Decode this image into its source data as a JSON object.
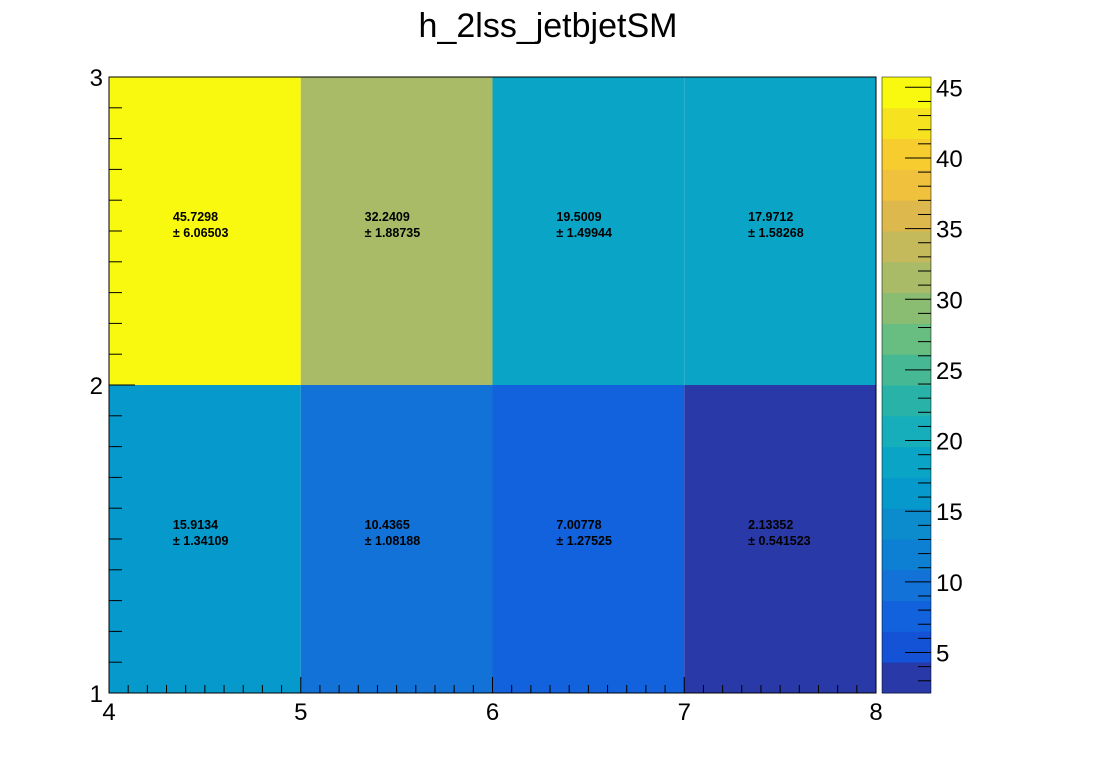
{
  "chart_data": {
    "type": "heatmap",
    "title": "h_2lss_jetbjetSM",
    "xlabel": "",
    "ylabel": "",
    "x_edges": [
      4,
      5,
      6,
      7,
      8
    ],
    "y_edges": [
      1,
      2,
      3
    ],
    "xlim": [
      4,
      8
    ],
    "ylim": [
      1,
      3
    ],
    "x_tick_labels": [
      "4",
      "5",
      "6",
      "7",
      "8"
    ],
    "y_tick_labels": [
      "1",
      "2",
      "3"
    ],
    "z_range": [
      2.13352,
      45.7298
    ],
    "colorbar_ticks": [
      "5",
      "10",
      "15",
      "20",
      "25",
      "30",
      "35",
      "40",
      "45"
    ],
    "palette": "parula",
    "grid": false,
    "cells": [
      {
        "x": 4,
        "y": 1,
        "value": 15.9134,
        "error": 1.34109,
        "value_text": "15.9134",
        "error_text": "± 1.34109"
      },
      {
        "x": 5,
        "y": 1,
        "value": 10.4365,
        "error": 1.08188,
        "value_text": "10.4365",
        "error_text": "± 1.08188"
      },
      {
        "x": 6,
        "y": 1,
        "value": 7.00778,
        "error": 1.27525,
        "value_text": "7.00778",
        "error_text": "± 1.27525"
      },
      {
        "x": 7,
        "y": 1,
        "value": 2.13352,
        "error": 0.541523,
        "value_text": "2.13352",
        "error_text": "± 0.541523"
      },
      {
        "x": 4,
        "y": 2,
        "value": 45.7298,
        "error": 6.06503,
        "value_text": "45.7298",
        "error_text": "± 6.06503"
      },
      {
        "x": 5,
        "y": 2,
        "value": 32.2409,
        "error": 1.88735,
        "value_text": "32.2409",
        "error_text": "± 1.88735"
      },
      {
        "x": 6,
        "y": 2,
        "value": 19.5009,
        "error": 1.49944,
        "value_text": "19.5009",
        "error_text": "± 1.49944"
      },
      {
        "x": 7,
        "y": 2,
        "value": 17.9712,
        "error": 1.58268,
        "value_text": "17.9712",
        "error_text": "± 1.58268"
      }
    ]
  }
}
